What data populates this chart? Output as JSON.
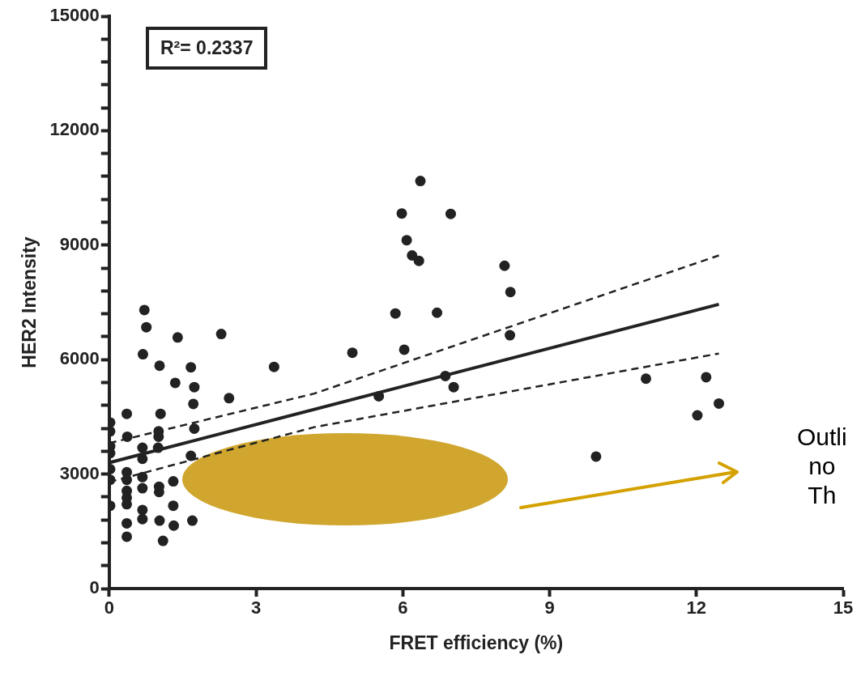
{
  "chart_data": {
    "type": "scatter",
    "xlabel": "FRET efficiency (%)",
    "ylabel": "HER2 Intensity",
    "xlim": [
      0,
      15
    ],
    "xticks": [
      0,
      3,
      6,
      9,
      12,
      15
    ],
    "ylim": [
      0,
      15000
    ],
    "yticks": [
      0,
      {
        "value": 600,
        "label": null
      },
      {
        "value": 1200,
        "label": null
      },
      {
        "value": 1800,
        "label": null
      },
      {
        "value": 2400,
        "label": null
      },
      3000,
      {
        "value": 3600,
        "label": null
      },
      {
        "value": 4200,
        "label": null
      },
      {
        "value": 4800,
        "label": null
      },
      {
        "value": 5400,
        "label": null
      },
      6000,
      {
        "value": 6600,
        "label": null
      },
      {
        "value": 7200,
        "label": null
      },
      {
        "value": 7800,
        "label": null
      },
      {
        "value": 8400,
        "label": null
      },
      9000,
      {
        "value": 9600,
        "label": null
      },
      {
        "value": 10200,
        "label": null
      },
      {
        "value": 10800,
        "label": null
      },
      {
        "value": 11400,
        "label": null
      },
      12000,
      {
        "value": 12600,
        "label": null
      },
      {
        "value": 13200,
        "label": null
      },
      {
        "value": 13800,
        "label": null
      },
      {
        "value": 14400,
        "label": null
      },
      15000
    ],
    "grid": false,
    "legend": false,
    "annotations": [
      "R²= 0.2337",
      "Outli",
      "no",
      "Th"
    ],
    "series": [
      {
        "type": "scatter",
        "color": "#222222",
        "marker": "circle",
        "x": [
          0.72,
          0.76,
          1.4,
          2.29,
          0.69,
          1.03,
          1.67,
          3.37,
          1.35,
          1.74,
          1.72,
          2.45,
          0.36,
          1.05,
          0.02,
          0.02,
          0.37,
          1.01,
          1.01,
          1.74,
          0.02,
          0.02,
          0.68,
          0.68,
          1.0,
          1.67,
          0.02,
          0.02,
          0.36,
          0.36,
          0.68,
          0.68,
          0.36,
          0.36,
          0.36,
          1.02,
          1.02,
          0.02,
          1.31,
          1.31,
          0.68,
          0.68,
          0.36,
          0.36,
          1.03,
          1.32,
          1.7,
          1.1,
          6.36,
          5.98,
          6.98,
          6.08,
          6.19,
          6.33,
          8.08,
          8.2,
          5.85,
          6.7,
          4.97,
          6.03,
          8.19,
          6.87,
          7.04,
          5.51,
          10.97,
          12.2,
          12.46,
          12.02,
          9.95
        ],
        "values": [
          7300,
          6850,
          6580,
          6670,
          6140,
          5840,
          5800,
          5810,
          5390,
          5280,
          4840,
          4990,
          4580,
          4580,
          4350,
          4120,
          3980,
          4120,
          3980,
          4190,
          3730,
          3550,
          3690,
          3400,
          3690,
          3480,
          3130,
          2850,
          3050,
          2850,
          2920,
          2630,
          2560,
          2380,
          2210,
          2670,
          2530,
          2170,
          2810,
          2170,
          2060,
          1820,
          1710,
          1360,
          1780,
          1650,
          1780,
          1250,
          10680,
          9830,
          9820,
          9130,
          8730,
          8590,
          8460,
          7770,
          7210,
          7230,
          6180,
          6260,
          6640,
          5570,
          5280,
          5040,
          5500,
          5540,
          4850,
          4540,
          3460
        ]
      },
      {
        "type": "line",
        "color": "#222222",
        "line_style": "solid",
        "marker": "none",
        "x": [
          0,
          12.46
        ],
        "values": [
          3300,
          7450
        ]
      },
      {
        "type": "line",
        "color": "#222222",
        "line_style": "dashed",
        "marker": "none",
        "x": [
          0,
          4.19,
          12.46
        ],
        "values": [
          3810,
          5110,
          8730
        ]
      },
      {
        "type": "line",
        "color": "#222222",
        "line_style": "dashed",
        "marker": "none",
        "x": [
          0,
          4.19,
          12.46
        ],
        "values": [
          2790,
          4230,
          6160
        ]
      }
    ]
  }
}
